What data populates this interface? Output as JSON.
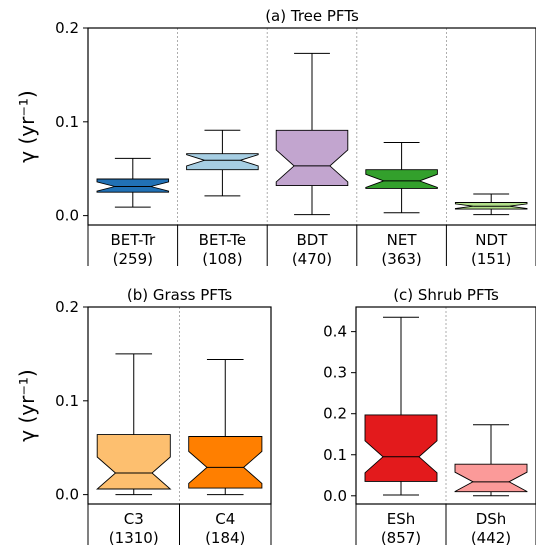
{
  "chart_data": [
    {
      "type": "box",
      "title": "(a) Tree PFTs",
      "ylabel": "γ (yr⁻¹)",
      "ylim": [
        -0.01,
        0.2
      ],
      "yticks": [
        "0.0",
        "0.1",
        "0.2"
      ],
      "ytick_values": [
        0.0,
        0.1,
        0.2
      ],
      "categories": [
        {
          "name": "BET-Tr",
          "count": "(259)",
          "color": "#2171b5",
          "min": 0.009,
          "q1": 0.025,
          "median": 0.031,
          "q3": 0.039,
          "max": 0.061
        },
        {
          "name": "BET-Te",
          "count": "(108)",
          "color": "#a6cee3",
          "min": 0.021,
          "q1": 0.049,
          "median": 0.059,
          "q3": 0.066,
          "max": 0.091
        },
        {
          "name": "BDT",
          "count": "(470)",
          "color": "#c2a5cf",
          "min": 0.001,
          "q1": 0.032,
          "median": 0.053,
          "q3": 0.091,
          "max": 0.173
        },
        {
          "name": "NET",
          "count": "(363)",
          "color": "#33a02c",
          "min": 0.003,
          "q1": 0.029,
          "median": 0.037,
          "q3": 0.049,
          "max": 0.078
        },
        {
          "name": "NDT",
          "count": "(151)",
          "color": "#b2df8a",
          "min": 0.001,
          "q1": 0.007,
          "median": 0.01,
          "q3": 0.014,
          "max": 0.023
        }
      ]
    },
    {
      "type": "box",
      "title": "(b) Grass PFTs",
      "ylabel": "γ (yr⁻¹)",
      "ylim": [
        -0.01,
        0.2
      ],
      "yticks": [
        "0.0",
        "0.1",
        "0.2"
      ],
      "ytick_values": [
        0.0,
        0.1,
        0.2
      ],
      "categories": [
        {
          "name": "C3",
          "count": "(1310)",
          "color": "#fdbf6f",
          "min": 0.0,
          "q1": 0.006,
          "median": 0.023,
          "q3": 0.064,
          "max": 0.15
        },
        {
          "name": "C4",
          "count": "(184)",
          "color": "#ff7f00",
          "min": 0.0,
          "q1": 0.007,
          "median": 0.029,
          "q3": 0.062,
          "max": 0.144
        }
      ]
    },
    {
      "type": "box",
      "title": "(c) Shrub PFTs",
      "ylabel": "",
      "ylim": [
        -0.02,
        0.46
      ],
      "yticks": [
        "0.0",
        "0.1",
        "0.2",
        "0.3",
        "0.4"
      ],
      "ytick_values": [
        0.0,
        0.1,
        0.2,
        0.3,
        0.4
      ],
      "categories": [
        {
          "name": "ESh",
          "count": "(857)",
          "color": "#e31a1c",
          "min": 0.002,
          "q1": 0.035,
          "median": 0.095,
          "q3": 0.197,
          "max": 0.435
        },
        {
          "name": "DSh",
          "count": "(442)",
          "color": "#fb9a99",
          "min": 0.0,
          "q1": 0.01,
          "median": 0.034,
          "q3": 0.077,
          "max": 0.173
        }
      ]
    }
  ]
}
